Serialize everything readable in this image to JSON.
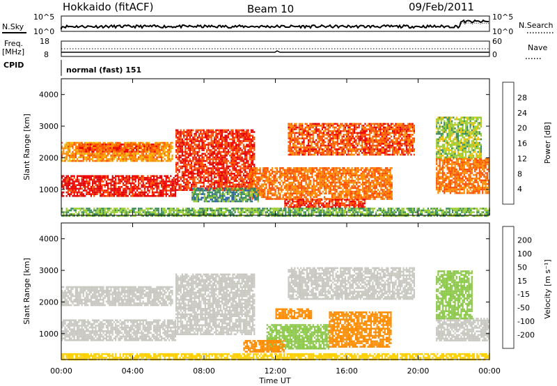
{
  "header": {
    "station": "Hokkaido (fitACF)",
    "beam": "Beam 10",
    "date": "09/Feb/2011"
  },
  "top_panels": {
    "nsky_label": "N.Sky",
    "nsky_ticks": [
      "10^5",
      "10^0"
    ],
    "nsearch_label": "N.Search",
    "nsearch_ticks": [
      "10^5",
      "10^0"
    ],
    "freq_label": "Freq.",
    "freq_unit": "[MHz]",
    "freq_ticks": [
      "18",
      "8"
    ],
    "nave_label": "Nave",
    "nave_ticks": [
      "60",
      "0"
    ],
    "cpid_label": "CPID",
    "cpid_text": "normal (fast) 151"
  },
  "chart_data": [
    {
      "type": "heatmap",
      "panel": "power",
      "ylabel": "Slant Range [km]",
      "xlabel": "",
      "yticks": [
        "1000",
        "2000",
        "3000",
        "4000"
      ],
      "ylim": [
        180,
        4500
      ],
      "xlim_hours": [
        0,
        24
      ],
      "colorbar_label": "Power [dB]",
      "colorbar_ticks": [
        "4",
        "8",
        "12",
        "16",
        "20",
        "24",
        "28"
      ],
      "colorbar_colors": [
        "#1010e0",
        "#2a5faa",
        "#3c8c5a",
        "#9acd32",
        "#f0c000",
        "#ff8c00",
        "#ff5000",
        "#e80000"
      ],
      "regions": [
        {
          "t0": 0.0,
          "t1": 6.4,
          "r0": 800,
          "r1": 1450,
          "value": 30
        },
        {
          "t0": 6.4,
          "t1": 10.8,
          "r0": 1000,
          "r1": 2900,
          "value": 28
        },
        {
          "t0": 0.0,
          "t1": 6.2,
          "r0": 1900,
          "r1": 2500,
          "value": 22
        },
        {
          "t0": 1.0,
          "t1": 5.5,
          "r0": 2200,
          "r1": 2450,
          "value": 26
        },
        {
          "t0": 12.7,
          "t1": 19.8,
          "r0": 2100,
          "r1": 3100,
          "value": 26
        },
        {
          "t0": 10.5,
          "t1": 18.5,
          "r0": 700,
          "r1": 1700,
          "value": 24
        },
        {
          "t0": 12.5,
          "t1": 17.0,
          "r0": 450,
          "r1": 700,
          "value": 28
        },
        {
          "t0": 21.0,
          "t1": 24.0,
          "r0": 900,
          "r1": 2000,
          "value": 24
        },
        {
          "t0": 21.0,
          "t1": 23.5,
          "r0": 2000,
          "r1": 3300,
          "value": 14
        },
        {
          "t0": 0.0,
          "t1": 24.0,
          "r0": 180,
          "r1": 420,
          "value": 12
        },
        {
          "t0": 7.3,
          "t1": 11.0,
          "r0": 600,
          "r1": 1050,
          "value": 10
        }
      ]
    },
    {
      "type": "heatmap",
      "panel": "velocity",
      "ylabel": "Slant Range [km]",
      "xlabel": "Time UT",
      "yticks": [
        "1000",
        "2000",
        "3000",
        "4000"
      ],
      "ylim": [
        180,
        4500
      ],
      "xlim_hours": [
        0,
        24
      ],
      "xticks": [
        "00:00",
        "04:00",
        "08:00",
        "12:00",
        "16:00",
        "20:00",
        "00:00"
      ],
      "colorbar_label": "Velocity [m s⁻¹]",
      "colorbar_ticks": [
        "200",
        "100",
        "50",
        "15",
        "-15",
        "-50",
        "-100",
        "-200"
      ],
      "colorbar_colors": [
        "#1f3fbf",
        "#2a6ea0",
        "#3c8c5a",
        "#8cc84a",
        "#c8c8c0",
        "#ffd000",
        "#ff8c00",
        "#ff5000",
        "#e80000"
      ],
      "regions": [
        {
          "t0": 0.0,
          "t1": 6.4,
          "r0": 800,
          "r1": 1450,
          "value": 0
        },
        {
          "t0": 6.4,
          "t1": 10.8,
          "r0": 1000,
          "r1": 2900,
          "value": 0
        },
        {
          "t0": 0.0,
          "t1": 6.2,
          "r0": 1900,
          "r1": 2500,
          "value": 0
        },
        {
          "t0": 12.7,
          "t1": 19.8,
          "r0": 2100,
          "r1": 3100,
          "value": 0
        },
        {
          "t0": 21.0,
          "t1": 24.0,
          "r0": 800,
          "r1": 1500,
          "value": 0
        },
        {
          "t0": 11.5,
          "t1": 15.0,
          "r0": 500,
          "r1": 1300,
          "value": 40
        },
        {
          "t0": 15.0,
          "t1": 18.5,
          "r0": 600,
          "r1": 1700,
          "value": -60
        },
        {
          "t0": 10.2,
          "t1": 12.5,
          "r0": 400,
          "r1": 800,
          "value": -60
        },
        {
          "t0": 12.0,
          "t1": 14.0,
          "r0": 1500,
          "r1": 1800,
          "value": -70
        },
        {
          "t0": 21.0,
          "t1": 23.0,
          "r0": 1500,
          "r1": 3000,
          "value": 40
        },
        {
          "t0": 0.0,
          "t1": 24.0,
          "r0": 180,
          "r1": 380,
          "value": -40
        }
      ]
    }
  ]
}
